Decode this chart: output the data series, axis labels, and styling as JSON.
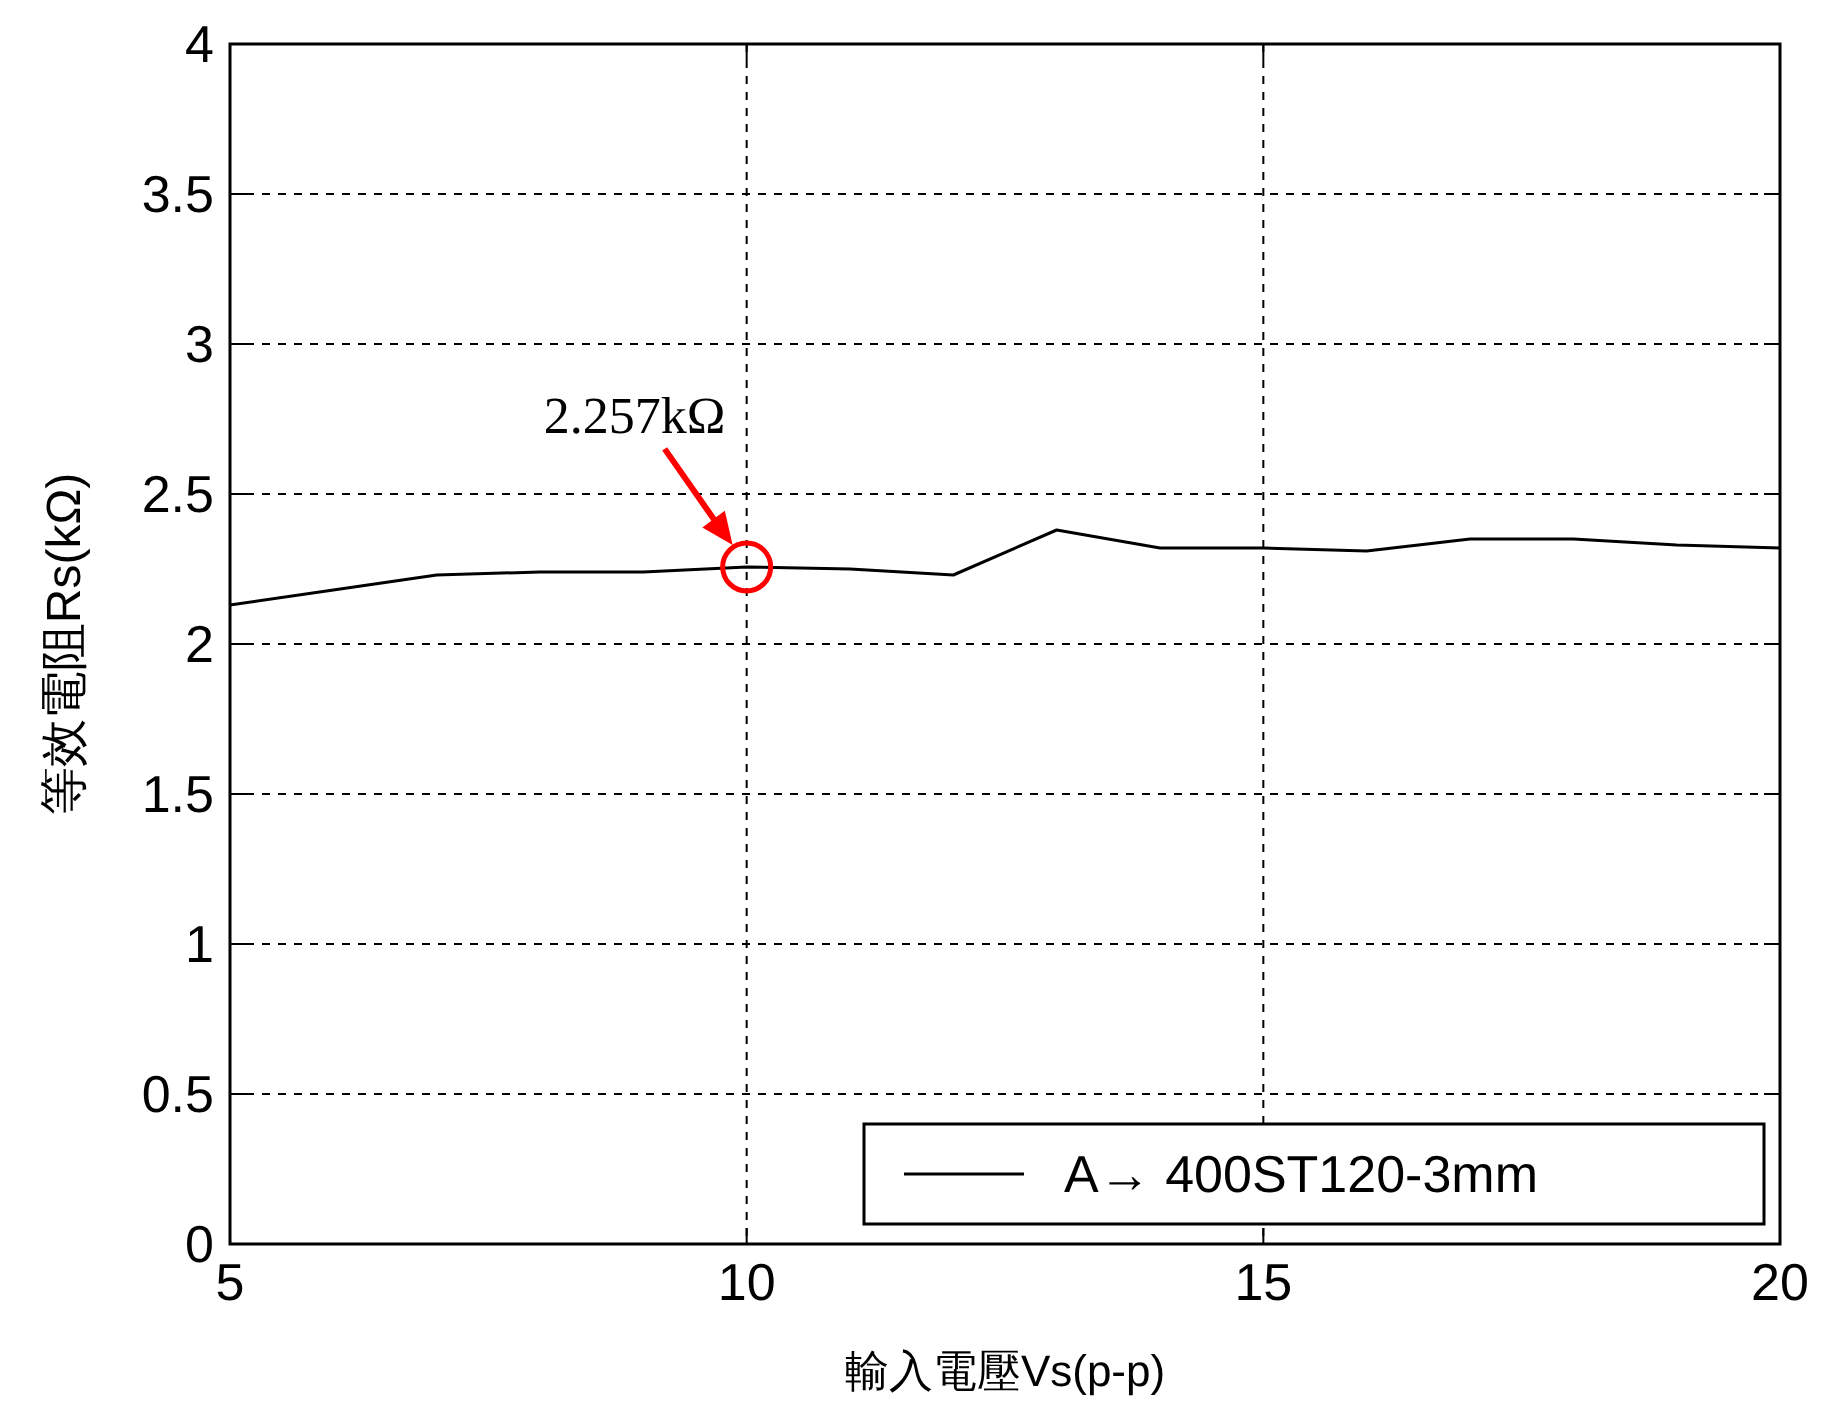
{
  "chart_data": {
    "type": "line",
    "xlabel": "輸入電壓Vs(p-p)",
    "ylabel": "等效電阻Rs(kΩ)",
    "x": [
      5,
      6,
      7,
      8,
      9,
      10,
      11,
      12,
      13,
      14,
      15,
      16,
      17,
      18,
      19,
      20
    ],
    "series": [
      {
        "name": "A→ 400ST120-3mm",
        "color": "#000000",
        "values": [
          2.13,
          2.18,
          2.23,
          2.24,
          2.24,
          2.257,
          2.25,
          2.23,
          2.38,
          2.32,
          2.32,
          2.31,
          2.35,
          2.35,
          2.33,
          2.32
        ]
      }
    ],
    "xlim": [
      5,
      20
    ],
    "ylim": [
      0,
      4
    ],
    "xticks": [
      5,
      10,
      15,
      20
    ],
    "yticks": [
      0,
      0.5,
      1,
      1.5,
      2,
      2.5,
      3,
      3.5,
      4
    ],
    "grid": true,
    "legend": "bottom right",
    "marker": "none",
    "line_style": "solid",
    "annotations": [
      {
        "text": "2.257kΩ",
        "x": 10,
        "y": 2.257
      }
    ]
  }
}
